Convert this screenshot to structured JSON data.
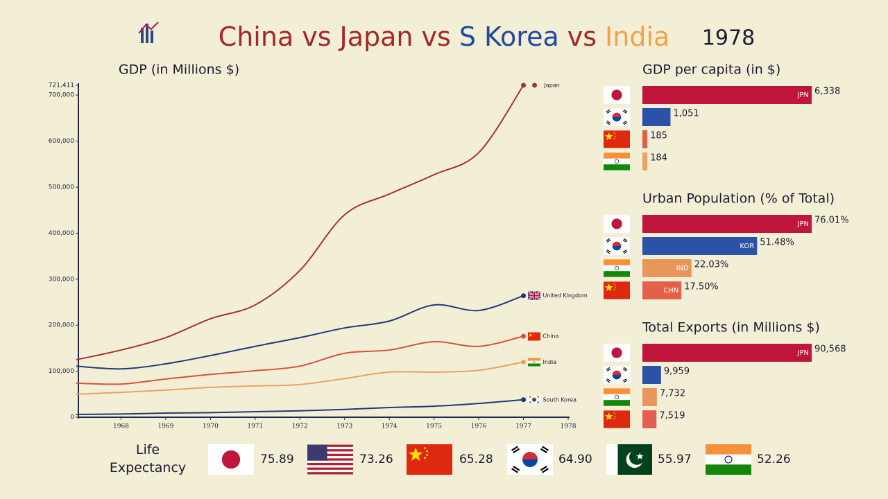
{
  "header": {
    "title": [
      "China",
      "vs",
      "Japan",
      "vs",
      "S Korea",
      "vs",
      "India"
    ],
    "year": "1978"
  },
  "chart_data": [
    {
      "type": "line",
      "title": "GDP (in Millions $)",
      "x": [
        1967,
        1968,
        1969,
        1970,
        1971,
        1972,
        1973,
        1974,
        1975,
        1976,
        1977
      ],
      "xlim": [
        1967,
        1978
      ],
      "xticks": [
        1968,
        1969,
        1970,
        1971,
        1972,
        1973,
        1974,
        1975,
        1976,
        1977,
        1978
      ],
      "ylim": [
        0,
        721411
      ],
      "yticks": [
        0,
        {
          "value": 100000,
          "label": "100,000"
        },
        {
          "value": 200000,
          "label": "200,000"
        },
        {
          "value": 300000,
          "label": "300,000"
        },
        {
          "value": 400000,
          "label": "400,000"
        },
        {
          "value": 500000,
          "label": "500,000"
        },
        {
          "value": 600000,
          "label": "600,000"
        },
        {
          "value": 700000,
          "label": "700,000"
        },
        {
          "value": 721411,
          "label": "721,411"
        }
      ],
      "series": [
        {
          "name": "Japan",
          "color": "#a8322d",
          "values": [
            125000,
            146000,
            173000,
            214000,
            244000,
            319000,
            440000,
            485000,
            527000,
            575000,
            721411
          ]
        },
        {
          "name": "United Kingdom",
          "color": "#1f3a7a",
          "values": [
            111000,
            105000,
            116000,
            134000,
            154000,
            173000,
            194000,
            209000,
            244000,
            232000,
            264000
          ]
        },
        {
          "name": "China",
          "color": "#d9513a",
          "values": [
            74000,
            72000,
            83000,
            93000,
            101000,
            111000,
            139000,
            146000,
            164000,
            154000,
            176000
          ]
        },
        {
          "name": "India",
          "color": "#eea060",
          "values": [
            50000,
            54000,
            59000,
            65000,
            68000,
            71000,
            84000,
            98000,
            98000,
            102000,
            120000
          ]
        },
        {
          "name": "South Korea",
          "color": "#1f3a7a",
          "values": [
            6000,
            7000,
            9000,
            10000,
            12000,
            14000,
            17000,
            21000,
            24000,
            30000,
            38000
          ]
        }
      ]
    },
    {
      "type": "hbar",
      "title": "GDP per capita (in $)",
      "categories": [
        "JPN",
        null,
        null,
        null
      ],
      "values": [
        6338,
        1051,
        185,
        184
      ],
      "value_labels": [
        "6,338",
        "1,051",
        "185",
        "184"
      ],
      "colors": [
        "#c0163b",
        "#2a52a8",
        "#e0603f",
        "#f0a060"
      ]
    },
    {
      "type": "hbar",
      "title": "Urban Population (% of Total)",
      "categories": [
        "JPN",
        "KOR",
        "IND",
        "CHN"
      ],
      "values": [
        76.01,
        51.48,
        22.03,
        17.5
      ],
      "value_labels": [
        "76.01%",
        "51.48%",
        "22.03%",
        "17.50%"
      ],
      "colors": [
        "#c0163b",
        "#2a52a8",
        "#e8965a",
        "#e5604a"
      ]
    },
    {
      "type": "hbar",
      "title": "Total Exports (in Millions $)",
      "categories": [
        "JPN",
        null,
        null,
        null
      ],
      "values": [
        90568,
        9959,
        7732,
        7519
      ],
      "value_labels": [
        "90,568",
        "9,959",
        "7,732",
        "7,519"
      ],
      "colors": [
        "#c0163b",
        "#2a52a8",
        "#e8965a",
        "#e36050"
      ]
    },
    {
      "type": "list",
      "title": "Life Expectancy",
      "values": [
        75.89,
        73.26,
        65.28,
        64.9,
        55.97,
        52.26
      ],
      "value_labels": [
        "75.89",
        "73.26",
        "65.28",
        "64.90",
        "55.97",
        "52.26"
      ]
    }
  ]
}
